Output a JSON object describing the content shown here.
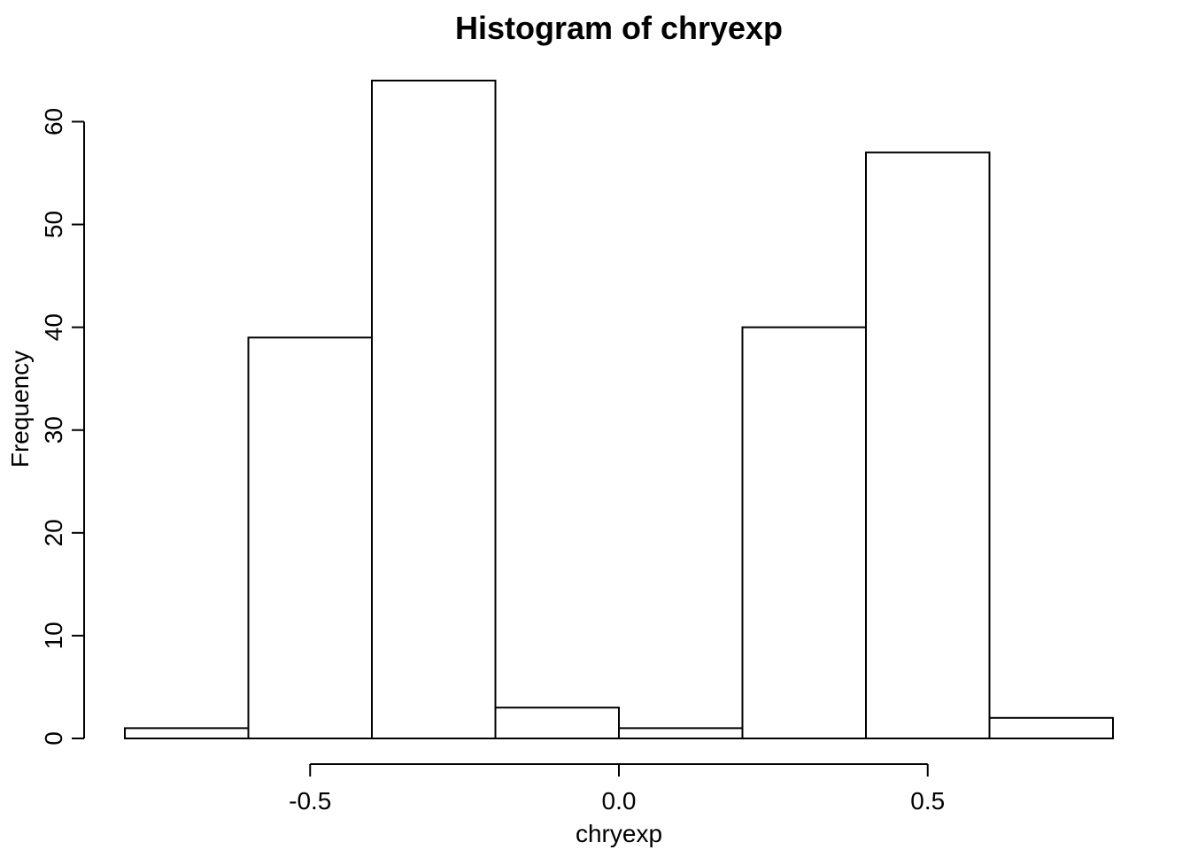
{
  "chart_data": {
    "type": "bar",
    "title": "Histogram of chryexp",
    "xlabel": "chryexp",
    "ylabel": "Frequency",
    "bin_edges": [
      -0.8,
      -0.6,
      -0.4,
      -0.2,
      0.0,
      0.2,
      0.4,
      0.6,
      0.8
    ],
    "values": [
      1,
      39,
      64,
      3,
      1,
      40,
      57,
      2
    ],
    "x_ticks": [
      -0.5,
      0.0,
      0.5
    ],
    "x_tick_labels": [
      "-0.5",
      "0.0",
      "0.5"
    ],
    "y_ticks": [
      0,
      10,
      20,
      30,
      40,
      50,
      60
    ],
    "y_tick_labels": [
      "0",
      "10",
      "20",
      "30",
      "40",
      "50",
      "60"
    ],
    "xlim": [
      -0.8,
      0.8
    ],
    "ylim": [
      0,
      64
    ],
    "grid": false,
    "colors": {
      "bar_fill": "#ffffff",
      "bar_stroke": "#000000"
    }
  }
}
